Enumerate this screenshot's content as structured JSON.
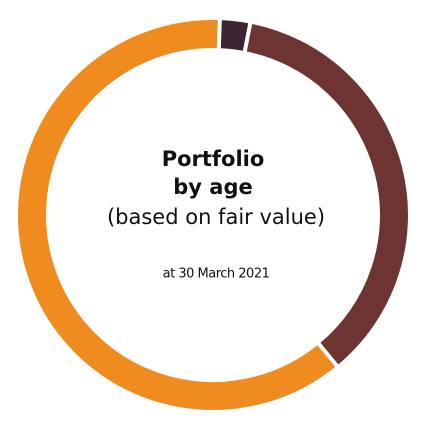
{
  "chart_data": {
    "type": "donut",
    "title": [
      "Portfolio",
      "by age"
    ],
    "subtitle": "(based on fair value)",
    "annotation": "at 30 March 2021",
    "categories": [
      null,
      null,
      null
    ],
    "values": [
      2.5,
      36,
      61.5
    ],
    "colors": [
      "#3b2533",
      "#6d3431",
      "#ef8b1f"
    ]
  }
}
